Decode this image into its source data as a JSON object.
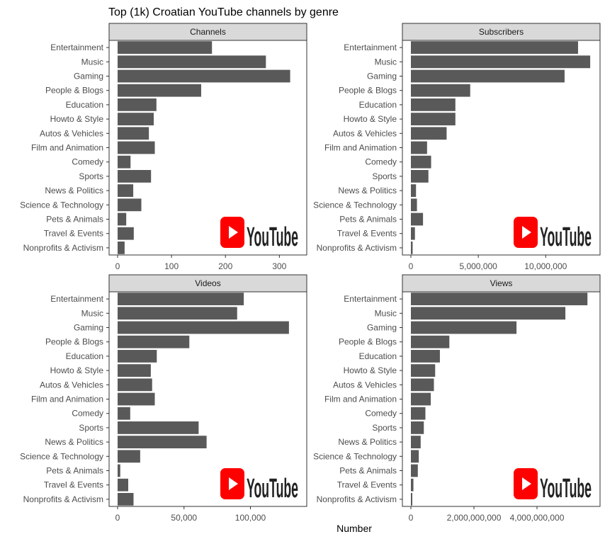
{
  "chart_data": {
    "type": "bar",
    "orientation": "horizontal",
    "title": "Top (1k) Croatian YouTube channels by genre",
    "xlabel": "Number",
    "ylabel": "",
    "bar_color": "#595959",
    "logo_text": "YouTube",
    "categories": [
      "Entertainment",
      "Music",
      "Gaming",
      "People & Blogs",
      "Education",
      "Howto & Style",
      "Autos & Vehicles",
      "Film and Animation",
      "Comedy",
      "Sports",
      "News & Politics",
      "Science & Technology",
      "Pets & Animals",
      "Travel & Events",
      "Nonprofits & Activism"
    ],
    "panels": [
      {
        "name": "Channels",
        "xlim": [
          0,
          335
        ],
        "ticks": [
          0,
          100,
          200,
          300
        ],
        "tick_labels": [
          "0",
          "100",
          "200",
          "300"
        ],
        "values": [
          175,
          275,
          320,
          155,
          72,
          67,
          58,
          69,
          24,
          62,
          29,
          44,
          16,
          30,
          13
        ]
      },
      {
        "name": "Subscribers",
        "xlim": [
          0,
          13400000
        ],
        "ticks": [
          0,
          5000000,
          10000000
        ],
        "tick_labels": [
          "0",
          "5,000,000",
          "10,000,000"
        ],
        "values": [
          12400000,
          13300000,
          11400000,
          4400000,
          3300000,
          3300000,
          2650000,
          1200000,
          1500000,
          1300000,
          380000,
          450000,
          900000,
          300000,
          130000
        ]
      },
      {
        "name": "Videos",
        "xlim": [
          0,
          136000
        ],
        "ticks": [
          0,
          50000,
          100000
        ],
        "tick_labels": [
          "0",
          "50,000",
          "100,000"
        ],
        "values": [
          95000,
          90000,
          129000,
          54000,
          29500,
          25000,
          26000,
          28000,
          9500,
          61000,
          67000,
          17000,
          2000,
          8000,
          12000
        ]
      },
      {
        "name": "Views",
        "xlim": [
          0,
          5730000000
        ],
        "ticks": [
          0,
          2000000000,
          4000000000
        ],
        "tick_labels": [
          "0",
          "2,000,000,000",
          "4,000,000,000"
        ],
        "values": [
          5600000000,
          4900000000,
          3350000000,
          1220000000,
          920000000,
          770000000,
          730000000,
          630000000,
          460000000,
          410000000,
          310000000,
          250000000,
          220000000,
          80000000,
          45000000
        ]
      }
    ]
  }
}
